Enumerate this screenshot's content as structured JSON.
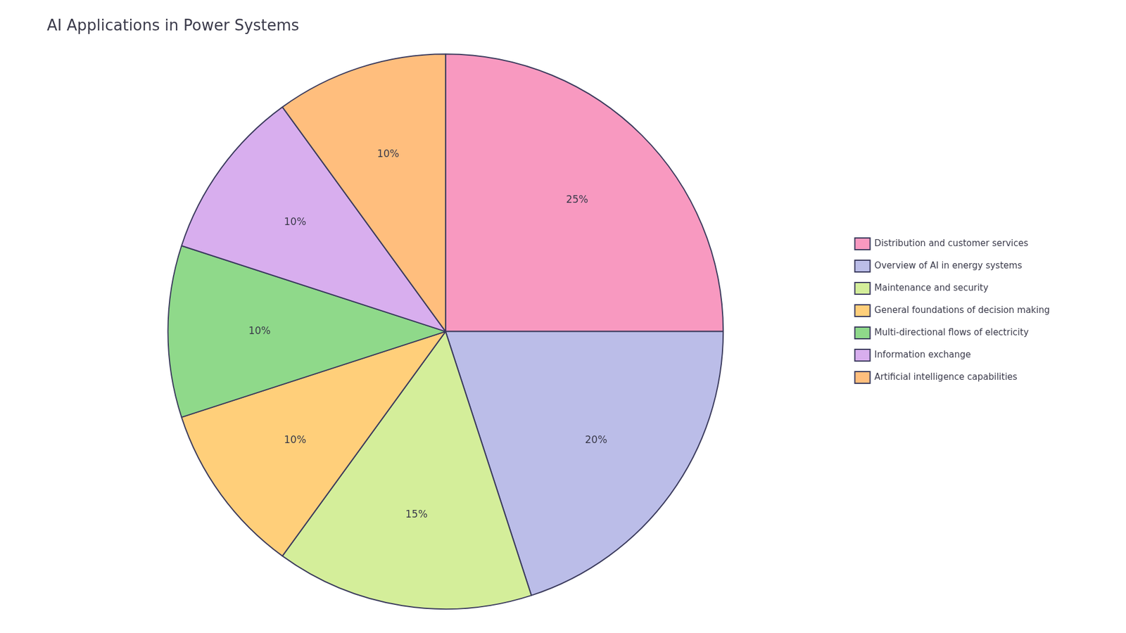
{
  "chart_data": {
    "type": "pie",
    "title": "AI Applications in Power Systems",
    "categories": [
      "Distribution and customer services",
      "Overview of AI in energy systems",
      "Maintenance and security",
      "General foundations of decision making",
      "Multi-directional flows of electricity",
      "Information exchange",
      "Artificial intelligence capabilities"
    ],
    "values": [
      25,
      20,
      15,
      10,
      10,
      10,
      10
    ],
    "value_labels": [
      "25%",
      "20%",
      "15%",
      "10%",
      "10%",
      "10%",
      "10%"
    ],
    "colors": [
      "#F899C0",
      "#BBBDE8",
      "#D4EE9A",
      "#FFCF7A",
      "#8FD98A",
      "#D8AEEE",
      "#FFBE7D"
    ],
    "legend": "right",
    "data_labels": true
  }
}
